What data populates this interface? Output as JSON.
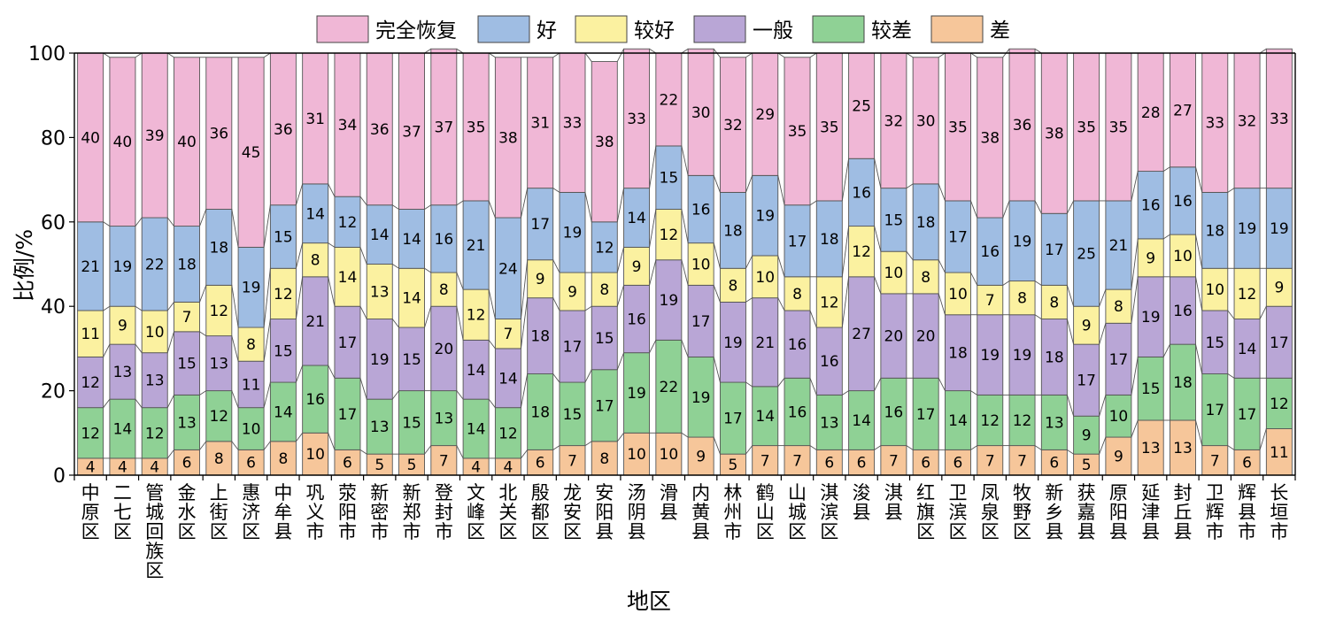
{
  "chart_data": {
    "type": "bar",
    "stacked": true,
    "title": "",
    "xlabel": "地区",
    "ylabel": "比例/%",
    "ylim": [
      0,
      100
    ],
    "yticks": [
      0,
      20,
      40,
      60,
      80,
      100
    ],
    "grid": false,
    "legend_position": "top",
    "categories": [
      "中原区",
      "二七区",
      "管城回族区",
      "金水区",
      "上街区",
      "惠济区",
      "中牟县",
      "巩义市",
      "荥阳市",
      "新密市",
      "新郑市",
      "登封市",
      "文峰区",
      "北关区",
      "殷都区",
      "龙安区",
      "安阳县",
      "汤阴县",
      "滑县",
      "内黄县",
      "林州市",
      "鹤山区",
      "山城区",
      "淇滨区",
      "浚县",
      "淇县",
      "红旗区",
      "卫滨区",
      "凤泉区",
      "牧野区",
      "新乡县",
      "获嘉县",
      "原阳县",
      "延津县",
      "封丘县",
      "卫辉市",
      "辉县市",
      "长垣市"
    ],
    "series": [
      {
        "name": "差",
        "color": "#f6c69a",
        "values": [
          4,
          4,
          4,
          6,
          8,
          6,
          8,
          10,
          6,
          5,
          5,
          7,
          4,
          4,
          6,
          7,
          8,
          10,
          10,
          9,
          5,
          7,
          7,
          6,
          6,
          7,
          6,
          6,
          7,
          7,
          6,
          5,
          9,
          13,
          13,
          7,
          6,
          11
        ]
      },
      {
        "name": "较差",
        "color": "#8fd195",
        "values": [
          12,
          14,
          12,
          13,
          12,
          10,
          14,
          16,
          17,
          13,
          15,
          13,
          14,
          12,
          18,
          15,
          17,
          19,
          22,
          19,
          17,
          14,
          16,
          13,
          14,
          16,
          17,
          14,
          12,
          12,
          13,
          9,
          10,
          15,
          18,
          17,
          17,
          12
        ]
      },
      {
        "name": "一般",
        "color": "#b9a6d6",
        "values": [
          12,
          13,
          13,
          15,
          13,
          11,
          15,
          21,
          17,
          19,
          15,
          20,
          14,
          14,
          18,
          17,
          15,
          16,
          19,
          17,
          19,
          21,
          16,
          16,
          27,
          20,
          20,
          18,
          19,
          19,
          18,
          17,
          17,
          19,
          16,
          15,
          14,
          17
        ]
      },
      {
        "name": "较好",
        "color": "#fbf1a0",
        "values": [
          11,
          9,
          10,
          7,
          12,
          8,
          12,
          8,
          14,
          13,
          14,
          8,
          12,
          7,
          9,
          9,
          8,
          9,
          12,
          10,
          8,
          10,
          8,
          12,
          12,
          10,
          8,
          10,
          7,
          8,
          8,
          9,
          8,
          9,
          10,
          10,
          12,
          9
        ]
      },
      {
        "name": "好",
        "color": "#9fbde3",
        "values": [
          21,
          19,
          22,
          18,
          18,
          19,
          15,
          14,
          12,
          14,
          14,
          16,
          21,
          24,
          17,
          19,
          12,
          14,
          15,
          16,
          18,
          19,
          17,
          18,
          16,
          15,
          18,
          17,
          16,
          19,
          17,
          25,
          21,
          16,
          16,
          18,
          19,
          19
        ]
      },
      {
        "name": "完全恢复",
        "color": "#f0b7d6",
        "values": [
          40,
          40,
          39,
          40,
          36,
          45,
          36,
          31,
          34,
          36,
          37,
          37,
          35,
          38,
          31,
          33,
          38,
          33,
          22,
          30,
          32,
          29,
          35,
          35,
          25,
          32,
          30,
          35,
          38,
          36,
          38,
          35,
          35,
          28,
          27,
          33,
          32,
          33
        ]
      }
    ]
  }
}
